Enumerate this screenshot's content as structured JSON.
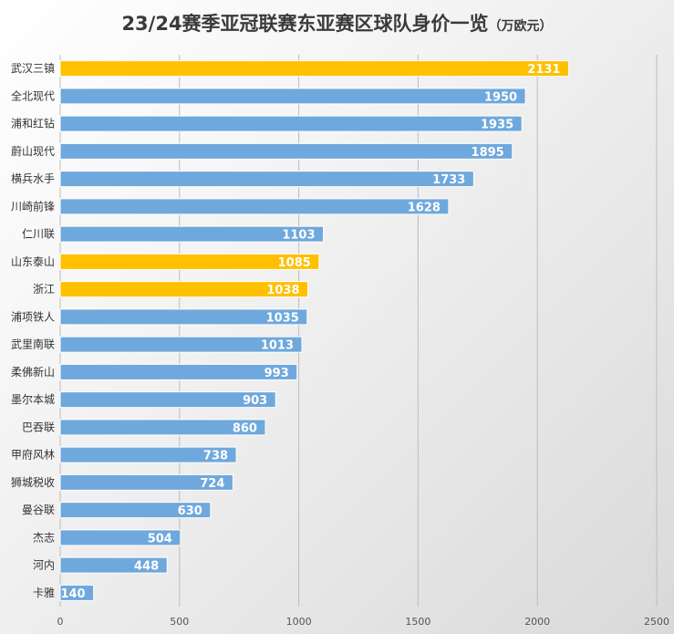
{
  "chart_data": {
    "type": "bar",
    "orientation": "horizontal",
    "title": "23/24赛季亚冠联赛东亚赛区球队身价一览",
    "subtitle": "（万欧元）",
    "categories": [
      "武汉三镇",
      "全北现代",
      "浦和红钻",
      "蔚山现代",
      "横兵水手",
      "川崎前锋",
      "仁川联",
      "山东泰山",
      "浙江",
      "浦项铁人",
      "武里南联",
      "柔佛新山",
      "墨尔本城",
      "巴吞联",
      "甲府风林",
      "狮城税收",
      "曼谷联",
      "杰志",
      "河内",
      "卡雅"
    ],
    "values": [
      2131,
      1950,
      1935,
      1895,
      1733,
      1628,
      1103,
      1085,
      1038,
      1035,
      1013,
      993,
      903,
      860,
      738,
      724,
      630,
      504,
      448,
      140
    ],
    "highlighted": [
      true,
      false,
      false,
      false,
      false,
      false,
      false,
      true,
      true,
      false,
      false,
      false,
      false,
      false,
      false,
      false,
      false,
      false,
      false,
      false
    ],
    "xlim": [
      0,
      2500
    ],
    "xticks": [
      0,
      500,
      1000,
      1500,
      2000,
      2500
    ],
    "grid": true,
    "colors": {
      "bar": "#6fa8dc",
      "highlight": "#ffc000"
    }
  }
}
